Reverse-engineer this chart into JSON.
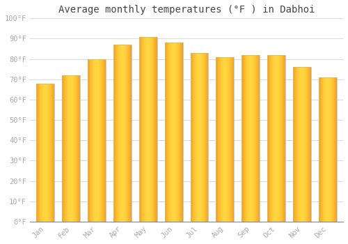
{
  "months": [
    "Jan",
    "Feb",
    "Mar",
    "Apr",
    "May",
    "Jun",
    "Jul",
    "Aug",
    "Sep",
    "Oct",
    "Nov",
    "Dec"
  ],
  "values": [
    68,
    72,
    80,
    87,
    91,
    88,
    83,
    81,
    82,
    82,
    76,
    71
  ],
  "title": "Average monthly temperatures (°F ) in Dabhoi",
  "background_color": "#FFFFFF",
  "grid_color": "#DDDDDD",
  "ylim": [
    0,
    100
  ],
  "yticks": [
    0,
    10,
    20,
    30,
    40,
    50,
    60,
    70,
    80,
    90,
    100
  ],
  "ytick_labels": [
    "0°F",
    "10°F",
    "20°F",
    "30°F",
    "40°F",
    "50°F",
    "60°F",
    "70°F",
    "80°F",
    "90°F",
    "100°F"
  ],
  "title_fontsize": 10,
  "tick_fontsize": 7.5,
  "tick_color": "#AAAAAA",
  "bar_color_center": "#FFD040",
  "bar_color_edge": "#F5A020",
  "bar_border_color": "#BBBBAA",
  "bar_width": 0.7
}
